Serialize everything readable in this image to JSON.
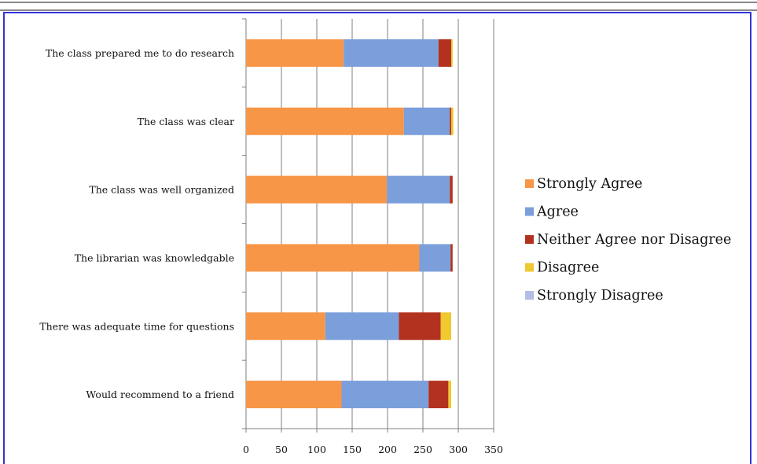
{
  "chart_data": {
    "type": "bar",
    "orientation": "horizontal",
    "stacked": true,
    "categories": [
      "The class prepared me to do research",
      "The class was clear",
      "The class was well organized",
      "The librarian was knowledgable",
      "There was adequate time for questions",
      "Would recommend to a friend"
    ],
    "series": [
      {
        "name": "Strongly Agree",
        "color": "#f79646",
        "values": [
          138,
          223,
          199,
          245,
          112,
          135
        ]
      },
      {
        "name": "Agree",
        "color": "#7b9fdb",
        "values": [
          134,
          65,
          89,
          44,
          104,
          123
        ]
      },
      {
        "name": "Neither Agree nor Disagree",
        "color": "#b3321f",
        "values": [
          18,
          2,
          4,
          3,
          59,
          28
        ]
      },
      {
        "name": "Disagree",
        "color": "#f0c830",
        "values": [
          2,
          3,
          0,
          0,
          15,
          4
        ]
      },
      {
        "name": "Strongly Disagree",
        "color": "#b4bde3",
        "values": [
          0,
          0,
          0,
          0,
          0,
          0
        ]
      }
    ],
    "xlim": [
      0,
      350
    ],
    "xticks": [
      0,
      50,
      100,
      150,
      200,
      250,
      300,
      350
    ],
    "grid": true,
    "legend_position": "right",
    "title": "",
    "xlabel": "",
    "ylabel": ""
  },
  "frame": {
    "border_color": "#3333dd"
  }
}
